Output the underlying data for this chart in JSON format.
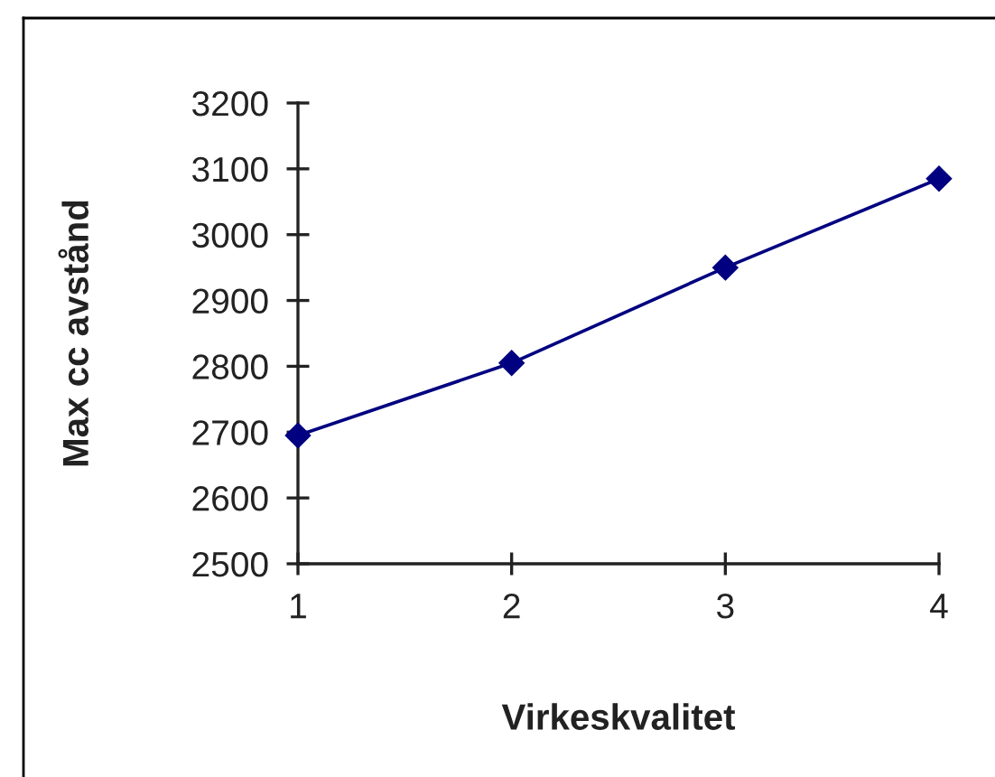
{
  "chart_data": {
    "type": "line",
    "xlabel": "Virkeskvalitet",
    "ylabel": "Max cc avstånd",
    "x": [
      1,
      2,
      3,
      4
    ],
    "values": [
      2695,
      2805,
      2950,
      3085
    ],
    "color": "#000080",
    "xlim": [
      1,
      4
    ],
    "xticks": [
      1,
      2,
      3,
      4
    ],
    "ylim": [
      2500,
      3200
    ],
    "yticks": [
      2500,
      2600,
      2700,
      2800,
      2900,
      3000,
      3100,
      3200
    ],
    "marker": "diamond",
    "line_style": "solid",
    "grid": false
  }
}
